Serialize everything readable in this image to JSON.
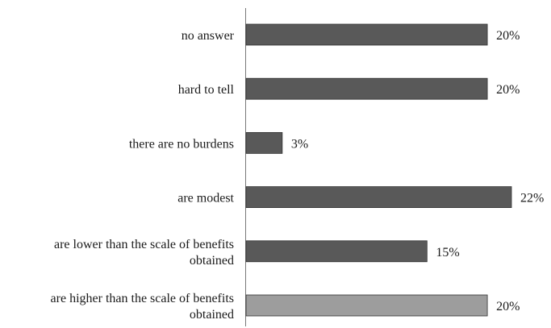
{
  "chart_data": {
    "type": "bar",
    "orientation": "horizontal",
    "categories": [
      [
        "no answer"
      ],
      [
        "hard to tell"
      ],
      [
        "there are no burdens"
      ],
      [
        "are modest"
      ],
      [
        "are lower than the scale of benefits",
        "obtained"
      ],
      [
        "are higher than the scale of benefits",
        "obtained"
      ]
    ],
    "values": [
      20,
      20,
      3,
      22,
      15,
      20
    ],
    "value_labels": [
      "20%",
      "20%",
      "3%",
      "22%",
      "15%",
      "20%"
    ],
    "bar_colors": [
      "#595959",
      "#595959",
      "#595959",
      "#595959",
      "#595959",
      "#9d9d9d"
    ],
    "xlim": [
      0,
      22
    ],
    "grid": false,
    "legend": "none",
    "title": "",
    "xlabel": "",
    "ylabel": ""
  }
}
